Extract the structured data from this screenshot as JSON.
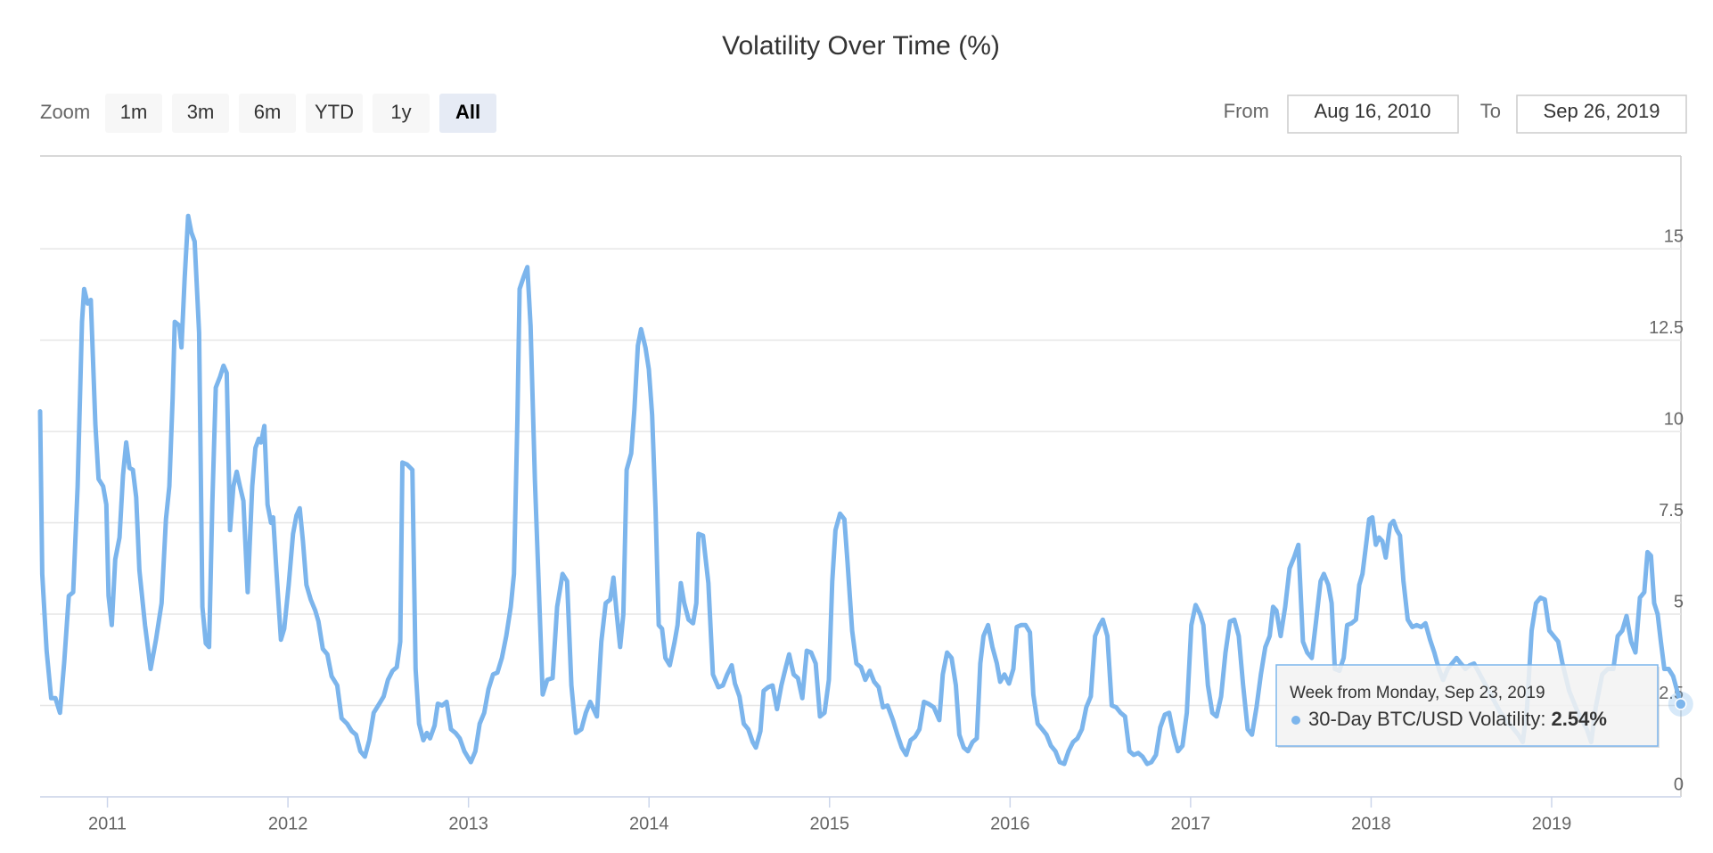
{
  "chart_data": {
    "type": "line",
    "title": "Volatility Over Time (%)",
    "color": "#7cb5ec",
    "grid": true,
    "xlim": [
      2010.627,
      2019.716
    ],
    "xticks": [
      {
        "value": 2011,
        "label": "2011"
      },
      {
        "value": 2012,
        "label": "2012"
      },
      {
        "value": 2013,
        "label": "2013"
      },
      {
        "value": 2014,
        "label": "2014"
      },
      {
        "value": 2015,
        "label": "2015"
      },
      {
        "value": 2016,
        "label": "2016"
      },
      {
        "value": 2017,
        "label": "2017"
      },
      {
        "value": 2018,
        "label": "2018"
      },
      {
        "value": 2019,
        "label": "2019"
      }
    ],
    "ylim": [
      0,
      17.54
    ],
    "yticks": [
      0,
      2.5,
      5,
      7.5,
      10,
      12.5,
      15
    ],
    "x": [
      2010.627,
      2010.639,
      2010.663,
      2010.688,
      2010.712,
      2010.737,
      2010.761,
      2010.786,
      2010.81,
      2010.835,
      2010.859,
      2010.871,
      2010.89,
      2010.908,
      2010.933,
      2010.951,
      2010.976,
      2010.994,
      2011.006,
      2011.024,
      2011.043,
      2011.067,
      2011.086,
      2011.104,
      2011.122,
      2011.141,
      2011.159,
      2011.177,
      2011.208,
      2011.239,
      2011.269,
      2011.3,
      2011.324,
      2011.343,
      2011.361,
      2011.373,
      2011.398,
      2011.41,
      2011.428,
      2011.447,
      2011.465,
      2011.483,
      2011.508,
      2011.526,
      2011.545,
      2011.563,
      2011.581,
      2011.6,
      2011.624,
      2011.643,
      2011.661,
      2011.679,
      2011.698,
      2011.716,
      2011.734,
      2011.753,
      2011.777,
      2011.802,
      2011.82,
      2011.838,
      2011.851,
      2011.869,
      2011.887,
      2011.906,
      2011.918,
      2011.936,
      2011.961,
      2011.979,
      2012.004,
      2012.028,
      2012.047,
      2012.065,
      2012.083,
      2012.102,
      2012.126,
      2012.151,
      2012.169,
      2012.193,
      2012.218,
      2012.242,
      2012.273,
      2012.297,
      2012.328,
      2012.353,
      2012.377,
      2012.401,
      2012.426,
      2012.45,
      2012.475,
      2012.506,
      2012.53,
      2012.554,
      2012.579,
      2012.603,
      2012.622,
      2012.634,
      2012.659,
      2012.689,
      2012.707,
      2012.726,
      2012.75,
      2012.769,
      2012.787,
      2012.812,
      2012.83,
      2012.854,
      2012.879,
      2012.903,
      2012.928,
      2012.952,
      2012.977,
      2013.013,
      2013.038,
      2013.062,
      2013.087,
      2013.111,
      2013.136,
      2013.16,
      2013.185,
      2013.209,
      2013.234,
      2013.252,
      2013.271,
      2013.283,
      2013.307,
      2013.326,
      2013.344,
      2013.368,
      2013.387,
      2013.411,
      2013.436,
      2013.466,
      2013.491,
      2013.521,
      2013.546,
      2013.57,
      2013.595,
      2013.625,
      2013.65,
      2013.674,
      2013.711,
      2013.736,
      2013.76,
      2013.785,
      2013.803,
      2013.821,
      2013.84,
      2013.858,
      2013.876,
      2013.901,
      2013.919,
      2013.938,
      2013.956,
      2013.98,
      2013.999,
      2014.017,
      2014.036,
      2014.054,
      2014.072,
      2014.091,
      2014.115,
      2014.14,
      2014.158,
      2014.176,
      2014.195,
      2014.219,
      2014.244,
      2014.262,
      2014.274,
      2014.299,
      2014.329,
      2014.354,
      2014.384,
      2014.409,
      2014.433,
      2014.458,
      2014.476,
      2014.501,
      2014.525,
      2014.55,
      2014.574,
      2014.592,
      2014.617,
      2014.635,
      2014.66,
      2014.684,
      2014.709,
      2014.733,
      2014.758,
      2014.776,
      2014.801,
      2014.825,
      2014.849,
      2014.874,
      2014.898,
      2014.923,
      2014.947,
      2014.972,
      2014.996,
      2015.015,
      2015.033,
      2015.058,
      2015.082,
      2015.1,
      2015.125,
      2015.149,
      2015.174,
      2015.198,
      2015.223,
      2015.247,
      2015.272,
      2015.296,
      2015.321,
      2015.351,
      2015.376,
      2015.4,
      2015.425,
      2015.449,
      2015.474,
      2015.498,
      2015.523,
      2015.547,
      2015.578,
      2015.608,
      2015.627,
      2015.651,
      2015.676,
      2015.7,
      2015.719,
      2015.743,
      2015.767,
      2015.792,
      2015.816,
      2015.835,
      2015.853,
      2015.878,
      2015.902,
      2015.927,
      2015.945,
      2015.969,
      2015.994,
      2016.018,
      2016.037,
      2016.061,
      2016.086,
      2016.11,
      2016.129,
      2016.153,
      2016.178,
      2016.202,
      2016.226,
      2016.251,
      2016.275,
      2016.3,
      2016.324,
      2016.349,
      2016.373,
      2016.398,
      2016.422,
      2016.447,
      2016.471,
      2016.496,
      2016.514,
      2016.539,
      2016.563,
      2016.588,
      2016.612,
      2016.637,
      2016.661,
      2016.685,
      2016.71,
      2016.734,
      2016.759,
      2016.783,
      2016.808,
      2016.832,
      2016.857,
      2016.881,
      2016.906,
      2016.93,
      2016.955,
      2016.979,
      2017.004,
      2017.028,
      2017.053,
      2017.071,
      2017.096,
      2017.12,
      2017.144,
      2017.169,
      2017.193,
      2017.218,
      2017.242,
      2017.267,
      2017.291,
      2017.316,
      2017.34,
      2017.365,
      2017.389,
      2017.414,
      2017.438,
      2017.457,
      2017.475,
      2017.499,
      2017.524,
      2017.548,
      2017.573,
      2017.597,
      2017.622,
      2017.646,
      2017.671,
      2017.695,
      2017.72,
      2017.738,
      2017.763,
      2017.781,
      2017.799,
      2017.824,
      2017.848,
      2017.867,
      2017.891,
      2017.916,
      2017.934,
      2017.952,
      2017.971,
      2017.989,
      2018.007,
      2018.026,
      2018.044,
      2018.062,
      2018.081,
      2018.105,
      2018.124,
      2018.142,
      2018.16,
      2018.179,
      2018.203,
      2018.228,
      2018.252,
      2018.277,
      2018.301,
      2018.326,
      2018.35,
      2018.375,
      2018.399,
      2018.424,
      2018.448,
      2018.473,
      2018.497,
      2018.522,
      2018.546,
      2018.57,
      2018.619,
      2018.668,
      2018.717,
      2018.766,
      2018.815,
      2018.84,
      2018.864,
      2018.889,
      2018.913,
      2018.938,
      2018.962,
      2018.987,
      2019.011,
      2019.036,
      2019.06,
      2019.097,
      2019.146,
      2019.195,
      2019.219,
      2019.244,
      2019.28,
      2019.311,
      2019.342,
      2019.366,
      2019.391,
      2019.415,
      2019.44,
      2019.464,
      2019.489,
      2019.513,
      2019.531,
      2019.55,
      2019.568,
      2019.587,
      2019.605,
      2019.624,
      2019.648,
      2019.673,
      2019.715
    ],
    "values": [
      10.55,
      6.1,
      4.0,
      2.7,
      2.7,
      2.3,
      3.7,
      5.5,
      5.6,
      8.5,
      13.0,
      13.9,
      13.5,
      13.6,
      10.2,
      8.7,
      8.5,
      8.0,
      5.5,
      4.7,
      6.5,
      7.1,
      8.8,
      9.7,
      9.0,
      8.95,
      8.2,
      6.2,
      4.7,
      3.5,
      4.3,
      5.3,
      7.6,
      8.5,
      10.9,
      13.0,
      12.9,
      12.3,
      14.2,
      15.9,
      15.45,
      15.2,
      12.7,
      5.2,
      4.2,
      4.1,
      8.0,
      11.2,
      11.5,
      11.8,
      11.6,
      7.3,
      8.5,
      8.9,
      8.5,
      8.1,
      5.6,
      8.5,
      9.55,
      9.8,
      9.7,
      10.15,
      8.0,
      7.5,
      7.65,
      6.2,
      4.3,
      4.6,
      5.8,
      7.2,
      7.7,
      7.9,
      7.0,
      5.8,
      5.4,
      5.1,
      4.8,
      4.05,
      3.9,
      3.3,
      3.05,
      2.15,
      2.0,
      1.8,
      1.7,
      1.25,
      1.1,
      1.55,
      2.3,
      2.55,
      2.75,
      3.2,
      3.45,
      3.55,
      4.25,
      9.15,
      9.1,
      8.95,
      3.5,
      2.0,
      1.55,
      1.75,
      1.6,
      1.95,
      2.55,
      2.5,
      2.6,
      1.85,
      1.75,
      1.6,
      1.25,
      0.95,
      1.25,
      2.0,
      2.3,
      2.95,
      3.35,
      3.4,
      3.8,
      4.4,
      5.2,
      6.1,
      10.3,
      13.9,
      14.25,
      14.5,
      12.9,
      8.65,
      6.1,
      2.8,
      3.2,
      3.25,
      5.2,
      6.1,
      5.9,
      3.05,
      1.75,
      1.85,
      2.3,
      2.6,
      2.2,
      4.25,
      5.3,
      5.4,
      6.0,
      5.0,
      4.1,
      5.0,
      8.95,
      9.4,
      10.6,
      12.35,
      12.8,
      12.3,
      11.7,
      10.45,
      7.9,
      4.7,
      4.6,
      3.8,
      3.6,
      4.2,
      4.7,
      5.85,
      5.3,
      4.85,
      4.75,
      5.3,
      7.2,
      7.15,
      5.85,
      3.35,
      3.0,
      3.05,
      3.35,
      3.6,
      3.1,
      2.75,
      2.0,
      1.85,
      1.5,
      1.35,
      1.8,
      2.9,
      3.0,
      3.05,
      2.4,
      3.05,
      3.55,
      3.9,
      3.35,
      3.25,
      2.7,
      4.0,
      3.95,
      3.65,
      2.2,
      2.3,
      3.2,
      5.9,
      7.3,
      7.75,
      7.6,
      6.4,
      4.55,
      3.65,
      3.55,
      3.2,
      3.45,
      3.15,
      3.0,
      2.45,
      2.5,
      2.1,
      1.7,
      1.35,
      1.15,
      1.55,
      1.65,
      1.85,
      2.6,
      2.55,
      2.45,
      2.1,
      3.35,
      3.95,
      3.8,
      3.05,
      1.7,
      1.35,
      1.25,
      1.5,
      1.6,
      3.65,
      4.4,
      4.7,
      4.1,
      3.65,
      3.15,
      3.35,
      3.1,
      3.5,
      4.65,
      4.7,
      4.7,
      4.5,
      2.8,
      2.0,
      1.85,
      1.7,
      1.4,
      1.25,
      0.95,
      0.9,
      1.25,
      1.5,
      1.6,
      1.85,
      2.45,
      2.75,
      4.4,
      4.7,
      4.85,
      4.4,
      2.5,
      2.45,
      2.3,
      2.2,
      1.25,
      1.15,
      1.2,
      1.1,
      0.9,
      0.95,
      1.15,
      1.9,
      2.25,
      2.3,
      1.7,
      1.25,
      1.4,
      2.3,
      4.7,
      5.25,
      5.0,
      4.7,
      3.05,
      2.3,
      2.2,
      2.75,
      3.95,
      4.8,
      4.85,
      4.4,
      3.05,
      1.85,
      1.7,
      2.45,
      3.35,
      4.1,
      4.4,
      5.2,
      5.1,
      4.4,
      5.2,
      6.25,
      6.55,
      6.9,
      4.25,
      3.95,
      3.8,
      4.8,
      5.9,
      6.1,
      5.8,
      5.3,
      3.5,
      3.45,
      3.8,
      4.7,
      4.75,
      4.85,
      5.8,
      6.1,
      6.85,
      7.6,
      7.65,
      6.9,
      7.1,
      7.0,
      6.55,
      7.45,
      7.55,
      7.3,
      7.15,
      5.9,
      4.85,
      4.65,
      4.7,
      4.65,
      4.75,
      4.3,
      3.95,
      3.5,
      3.2,
      3.5,
      3.65,
      3.8,
      3.65,
      3.5,
      3.6,
      3.65,
      3.2,
      2.75,
      2.3,
      2.0,
      1.7,
      1.5,
      2.45,
      4.55,
      5.3,
      5.45,
      5.4,
      4.55,
      4.4,
      4.25,
      3.65,
      2.9,
      2.3,
      1.85,
      1.5,
      2.45,
      3.35,
      3.5,
      3.5,
      4.4,
      4.55,
      4.95,
      4.25,
      3.95,
      5.45,
      5.6,
      6.7,
      6.6,
      5.3,
      5.0,
      4.25,
      3.5,
      3.5,
      3.3,
      2.54
    ],
    "tooltip": {
      "header": "Week from Monday, Sep 23, 2019",
      "label": "30-Day BTC/USD Volatility:",
      "value": "2.54%"
    }
  },
  "controls": {
    "zoom_label": "Zoom",
    "buttons": [
      "1m",
      "3m",
      "6m",
      "YTD",
      "1y",
      "All"
    ],
    "selected": 5,
    "from_label": "From",
    "from": "Aug 16, 2010",
    "to_label": "To",
    "to": "Sep 26, 2019"
  }
}
